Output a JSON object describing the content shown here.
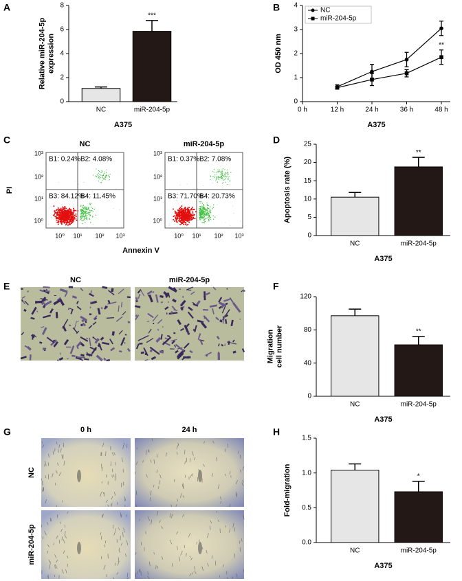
{
  "chart_data": [
    {
      "type": "bar",
      "panel": "A",
      "ylabel": [
        "Relative miR-204-5p",
        "expression"
      ],
      "xlabel": "A375",
      "categories": [
        "NC",
        "miR-204-5p"
      ],
      "values": [
        1.1,
        5.85
      ],
      "errors": [
        0.12,
        0.9
      ],
      "significance": [
        null,
        "***"
      ],
      "colors": [
        "#e6e6e6",
        "#231815"
      ],
      "ylim": [
        0,
        8
      ],
      "yticks": [
        0,
        2,
        4,
        6,
        8
      ]
    },
    {
      "type": "line",
      "panel": "B",
      "ylabel": [
        "OD 450 nm"
      ],
      "xlabel": "A375",
      "x": [
        12,
        24,
        36,
        48
      ],
      "xlim": [
        0,
        48
      ],
      "xticks": [
        {
          "value": 0,
          "label": "0 h"
        },
        {
          "value": 12,
          "label": "12 h"
        },
        {
          "value": 24,
          "label": "24 h"
        },
        {
          "value": 36,
          "label": "36 h"
        },
        {
          "value": 48,
          "label": "48 h"
        }
      ],
      "ylim": [
        0,
        4
      ],
      "yticks": [
        0,
        1,
        2,
        3,
        4
      ],
      "legend": "upper left",
      "series": [
        {
          "name": "NC",
          "color": "#000000",
          "marker": "circle",
          "values": [
            0.62,
            1.25,
            1.75,
            3.05
          ],
          "errors": [
            0.08,
            0.3,
            0.3,
            0.3
          ]
        },
        {
          "name": "miR-204-5p",
          "color": "#000000",
          "marker": "square",
          "values": [
            0.58,
            0.92,
            1.18,
            1.85
          ],
          "errors": [
            0.06,
            0.25,
            0.15,
            0.3
          ],
          "significance": [
            null,
            null,
            null,
            "**"
          ]
        }
      ]
    },
    {
      "type": "bar",
      "panel": "D",
      "ylabel": [
        "Apoptosis rate (%)"
      ],
      "xlabel": "A375",
      "categories": [
        "NC",
        "miR-204-5p"
      ],
      "values": [
        10.5,
        18.8
      ],
      "errors": [
        1.3,
        2.6
      ],
      "significance": [
        null,
        "**"
      ],
      "colors": [
        "#e6e6e6",
        "#231815"
      ],
      "ylim": [
        0,
        25
      ],
      "yticks": [
        0,
        5,
        10,
        15,
        20,
        25
      ]
    },
    {
      "type": "bar",
      "panel": "F",
      "ylabel": [
        "Migration",
        "cell number"
      ],
      "xlabel": "A375",
      "categories": [
        "NC",
        "miR-204-5p"
      ],
      "values": [
        97,
        62
      ],
      "errors": [
        8,
        10
      ],
      "significance": [
        null,
        "**"
      ],
      "colors": [
        "#e6e6e6",
        "#231815"
      ],
      "ylim": [
        0,
        120
      ],
      "yticks": [
        0,
        40,
        80,
        120
      ]
    },
    {
      "type": "bar",
      "panel": "H",
      "ylabel": [
        "Fold-migration"
      ],
      "xlabel": "A375",
      "categories": [
        "NC",
        "miR-204-5p"
      ],
      "values": [
        1.04,
        0.73
      ],
      "errors": [
        0.09,
        0.15
      ],
      "significance": [
        null,
        "*"
      ],
      "colors": [
        "#e6e6e6",
        "#231815"
      ],
      "ylim": [
        0,
        1.5
      ],
      "yticks": [
        {
          "value": 0,
          "label": "0.0"
        },
        {
          "value": 0.5,
          "label": "0.5"
        },
        {
          "value": 1,
          "label": "1.0"
        },
        {
          "value": 1.5,
          "label": "1.5"
        }
      ]
    }
  ],
  "figures": [
    {
      "panel": "C",
      "titles": [
        "NC",
        "miR-204-5p"
      ],
      "quadrants": [
        [
          "B1: 0.24%",
          "B2: 4.08%",
          "B3: 84.12%",
          "B4: 11.45%"
        ],
        [
          "B1: 0.37%",
          "B2: 7.08%",
          "B3: 71.70%",
          "B4: 20.73%"
        ]
      ],
      "ticks": [
        "10⁰",
        "10¹",
        "10²",
        "10³"
      ],
      "ylabel": "PI",
      "xlabel": "Annexin V"
    },
    {
      "panel": "E",
      "titles": [
        "NC",
        "miR-204-5p"
      ]
    },
    {
      "panel": "G",
      "titles": [
        "0 h",
        "24 h"
      ],
      "rows": [
        "NC",
        "miR-204-5p"
      ]
    }
  ]
}
